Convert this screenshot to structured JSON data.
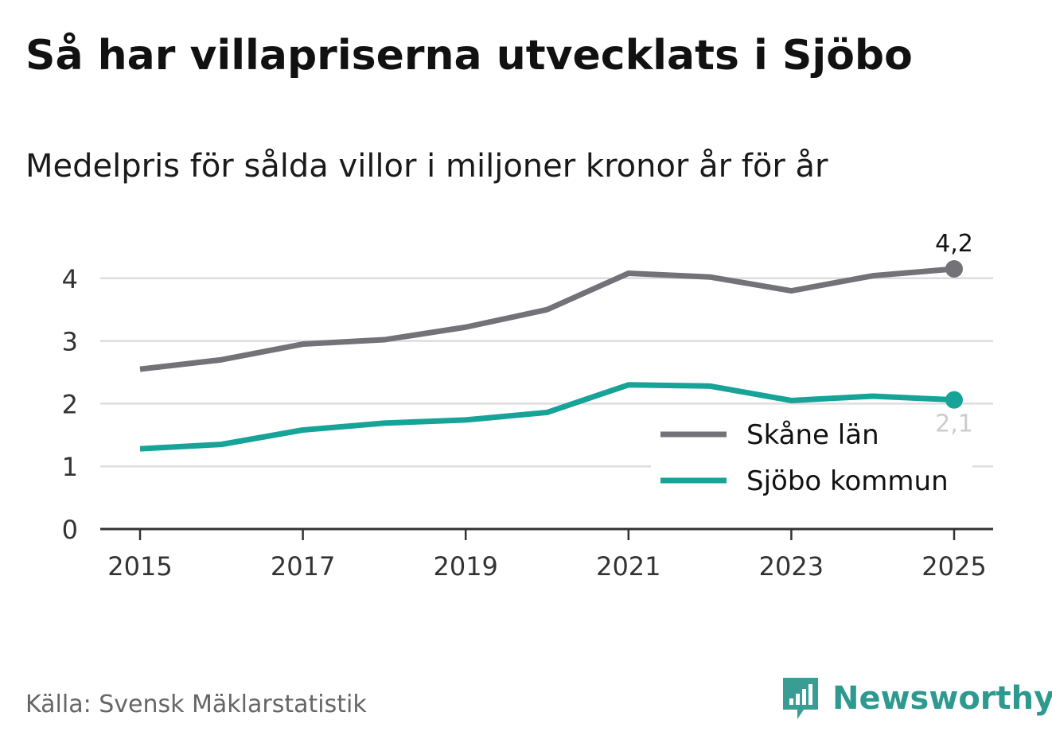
{
  "header": {
    "title": "Så har villapriserna utvecklats i Sjöbo",
    "subtitle": "Medelpris för sålda villor i miljoner kronor år för år"
  },
  "footer": {
    "source": "Källa: Svensk Mäklarstatistik",
    "brand": "Newsworthy",
    "brand_icon": "bar-chart-speech-bubble-icon"
  },
  "colors": {
    "skane": "#737278",
    "sjobo": "#17a398",
    "grid": "#dddddd",
    "axis": "#333333",
    "brand": "#2e9a8f"
  },
  "chart_data": {
    "type": "line",
    "title": "Så har villapriserna utvecklats i Sjöbo",
    "subtitle": "Medelpris för sålda villor i miljoner kronor år för år",
    "xlabel": "",
    "ylabel": "",
    "x": [
      2015,
      2016,
      2017,
      2018,
      2019,
      2020,
      2021,
      2022,
      2023,
      2024,
      2025
    ],
    "x_ticks": [
      "2015",
      "2017",
      "2019",
      "2021",
      "2023",
      "2025"
    ],
    "y_ticks": [
      "0",
      "1",
      "2",
      "3",
      "4"
    ],
    "ylim": [
      0,
      4.4
    ],
    "grid": true,
    "legend_position": "bottom-right",
    "series": [
      {
        "name": "Skåne län",
        "values": [
          2.55,
          2.7,
          2.95,
          3.02,
          3.22,
          3.5,
          4.08,
          4.02,
          3.8,
          4.04,
          4.15
        ],
        "end_label": "4,2"
      },
      {
        "name": "Sjöbo kommun",
        "values": [
          1.28,
          1.35,
          1.58,
          1.69,
          1.74,
          1.86,
          2.3,
          2.28,
          2.05,
          2.12,
          2.06
        ],
        "end_label": "2,1"
      }
    ]
  }
}
